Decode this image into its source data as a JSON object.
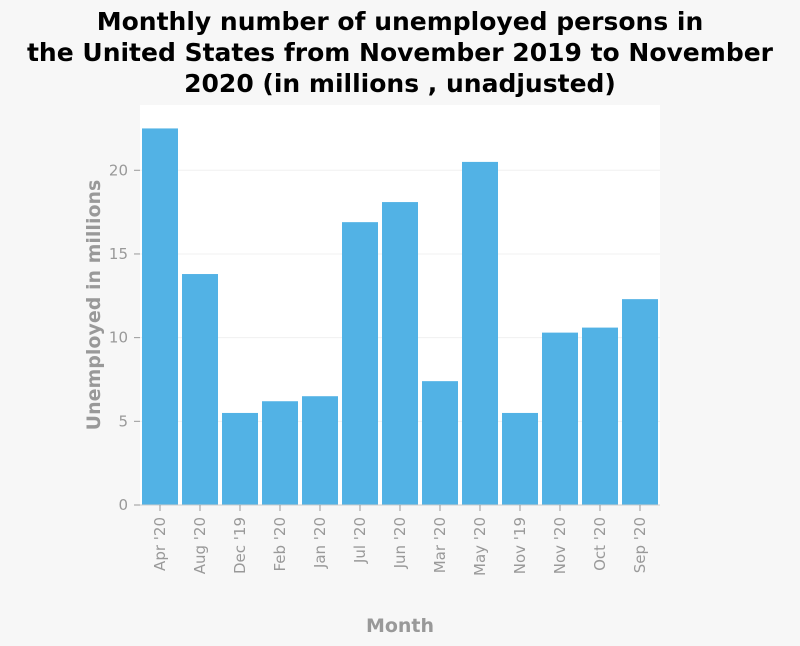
{
  "chart_data": {
    "type": "bar",
    "title_lines": [
      "Monthly number of unemployed persons in",
      "the United States from November 2019 to November",
      "2020 (in millions , unadjusted)"
    ],
    "xlabel": "Month",
    "ylabel": "Unemployed in millions",
    "categories": [
      "Apr '20",
      "Aug '20",
      "Dec '19",
      "Feb '20",
      "Jan '20",
      "Jul '20",
      "Jun '20",
      "Mar '20",
      "May '20",
      "Nov '19",
      "Nov '20",
      "Oct '20",
      "Sep '20"
    ],
    "values": [
      22.5,
      13.8,
      5.5,
      6.2,
      6.5,
      16.9,
      18.1,
      7.4,
      20.5,
      5.5,
      10.3,
      10.6,
      12.3
    ],
    "yticks": [
      0,
      5,
      10,
      15,
      20
    ],
    "ylim": [
      0,
      23.9
    ],
    "grid": true,
    "bar_color": "#52b2e5",
    "plot_background": "#ffffff",
    "page_background": "#f7f7f7"
  }
}
